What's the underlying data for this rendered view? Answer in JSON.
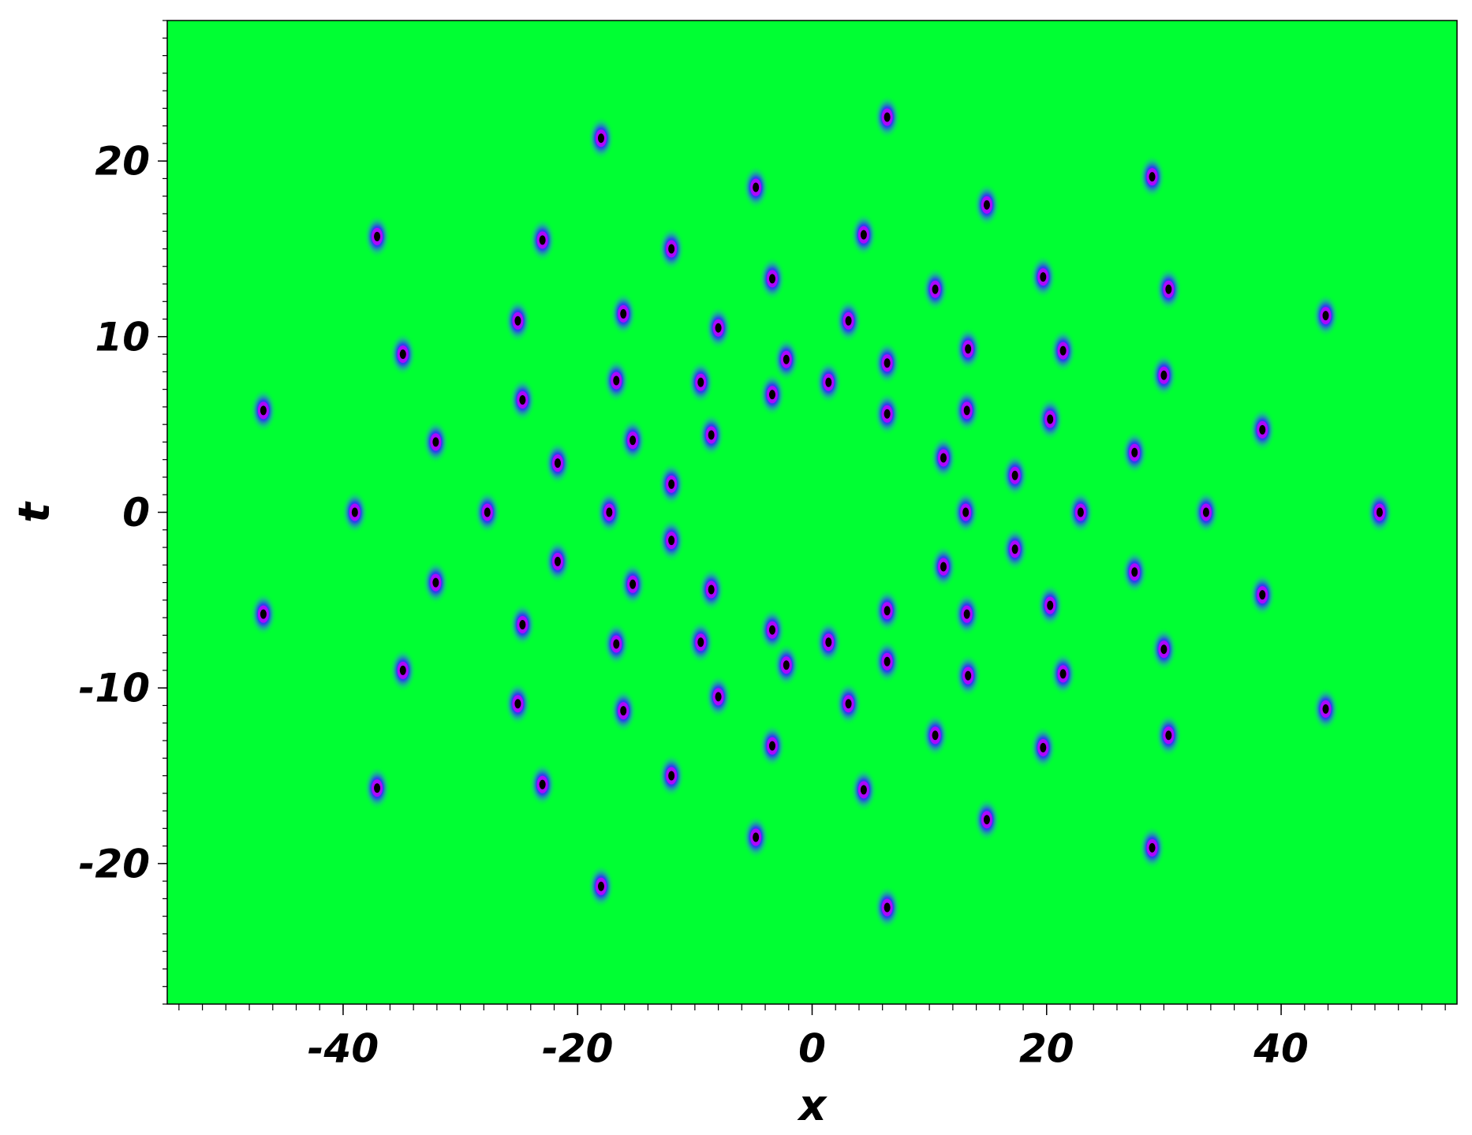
{
  "chart_data": {
    "type": "scatter",
    "xlabel": "x",
    "ylabel": "t",
    "background": "#00ff33",
    "color": "#000000",
    "x": [
      -18.0,
      6.4,
      -4.8,
      29.0,
      14.9,
      -37.1,
      -23.0,
      -12.0,
      4.4,
      -3.4,
      10.5,
      19.7,
      30.4,
      43.8,
      -25.1,
      -16.1,
      -8.0,
      3.1,
      -34.9,
      -2.2,
      6.4,
      13.3,
      21.4,
      1.4,
      -16.7,
      -9.5,
      30.0,
      -24.7,
      -3.4,
      -46.8,
      6.4,
      13.2,
      20.3,
      38.4,
      -32.1,
      -15.3,
      -8.6,
      27.5,
      -21.7,
      11.2,
      17.3,
      -12.0,
      -39.0,
      -27.7,
      -17.3,
      13.1,
      22.9,
      33.6,
      48.4,
      -18.0,
      6.4,
      -4.8,
      29.0,
      14.9,
      -37.1,
      -23.0,
      -12.0,
      4.4,
      -3.4,
      10.5,
      19.7,
      30.4,
      43.8,
      -25.1,
      -16.1,
      -8.0,
      3.1,
      -34.9,
      -2.2,
      6.4,
      13.3,
      21.4,
      1.4,
      -16.7,
      -9.5,
      30.0,
      -24.7,
      -3.4,
      -46.8,
      6.4,
      13.2,
      20.3,
      38.4,
      -32.1,
      -15.3,
      -8.6,
      27.5,
      -21.7,
      11.2,
      17.3,
      -12.0
    ],
    "values": [
      21.3,
      22.5,
      18.5,
      19.1,
      17.5,
      15.7,
      15.5,
      15.0,
      15.8,
      13.3,
      12.7,
      13.4,
      12.7,
      11.2,
      10.9,
      11.3,
      10.5,
      10.9,
      9.0,
      8.7,
      8.5,
      9.3,
      9.2,
      7.4,
      7.5,
      7.4,
      7.8,
      6.4,
      6.7,
      5.8,
      5.6,
      5.8,
      5.3,
      4.7,
      4.0,
      4.1,
      4.4,
      3.4,
      2.8,
      3.1,
      2.1,
      1.6,
      0,
      0,
      0,
      0,
      0,
      0,
      0,
      -21.3,
      -22.5,
      -18.5,
      -19.1,
      -17.5,
      -15.7,
      -15.5,
      -15.0,
      -15.8,
      -13.3,
      -12.7,
      -13.4,
      -12.7,
      -11.2,
      -10.9,
      -11.3,
      -10.5,
      -10.9,
      -9.0,
      -8.7,
      -8.5,
      -9.3,
      -9.2,
      -7.4,
      -7.5,
      -7.4,
      -7.8,
      -6.4,
      -6.7,
      -5.8,
      -5.6,
      -5.8,
      -5.3,
      -4.7,
      -4.0,
      -4.1,
      -4.4,
      -3.4,
      -2.8,
      -3.1,
      -2.1,
      -1.6
    ],
    "xlim": [
      -55,
      55
    ],
    "ylim": [
      -28,
      28
    ],
    "xticks": [
      -40,
      -20,
      0,
      20,
      40
    ],
    "yticks": [
      -20,
      -10,
      0,
      10,
      20
    ]
  }
}
